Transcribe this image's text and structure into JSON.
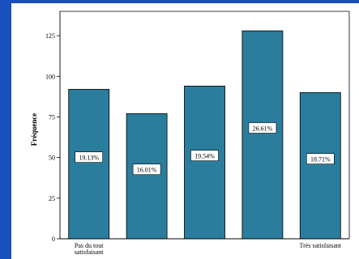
{
  "chart_data": {
    "type": "bar",
    "categories": [
      "Pas du tout\nsatisfaisant",
      "",
      "",
      "",
      "Très satisfaisant"
    ],
    "values": [
      92,
      77,
      94,
      128,
      90
    ],
    "data_labels": [
      "19.13%",
      "16.01%",
      "19.54%",
      "26.61%",
      "18.71%"
    ],
    "ylabel": "Fréquence",
    "xlabel": "",
    "ylim": [
      0,
      140
    ],
    "yticks": [
      0,
      25,
      50,
      75,
      100,
      125
    ],
    "grid": false,
    "legend": "none",
    "bar_color": "#2a7d9c",
    "background": "#1a4fbf"
  }
}
